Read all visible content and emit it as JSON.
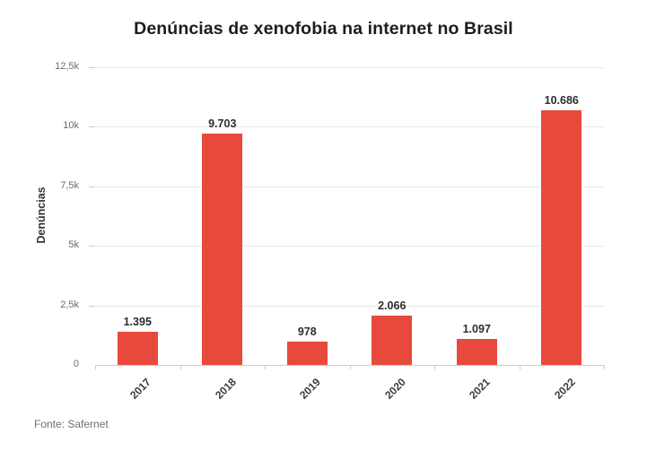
{
  "title": "Denúncias de xenofobia na internet no Brasil",
  "source": "Fonte: Safernet",
  "colors": {
    "bar": "#e74a3d",
    "grid": "#e9e9e9",
    "axis": "#cccccc",
    "title": "#1d1d1d",
    "data_label": "#2d2d2d",
    "x_label": "#3c3c3c",
    "y_tick_label": "#6b6b6b",
    "y_axis_title": "#333333",
    "source_text": "#6e6e6e",
    "background": "#ffffff"
  },
  "chart_data": {
    "type": "bar",
    "title": "Denúncias de xenofobia na internet no Brasil",
    "categories": [
      "2017",
      "2018",
      "2019",
      "2020",
      "2021",
      "2022"
    ],
    "values": [
      1395,
      9703,
      978,
      2066,
      1097,
      10686
    ],
    "value_labels": [
      "1.395",
      "9.703",
      "978",
      "2.066",
      "1.097",
      "10.686"
    ],
    "xlabel": "",
    "ylabel": "Denúncias",
    "ylim": [
      0,
      12500
    ],
    "yticks": [
      0,
      2500,
      5000,
      7500,
      10000,
      12500
    ],
    "ytick_labels": [
      "0",
      "2,5k",
      "5k",
      "7,5k",
      "10k",
      "12,5k"
    ],
    "grid": "horizontal",
    "legend": "none",
    "x_label_rotation": -45,
    "source": "Fonte: Safernet"
  }
}
